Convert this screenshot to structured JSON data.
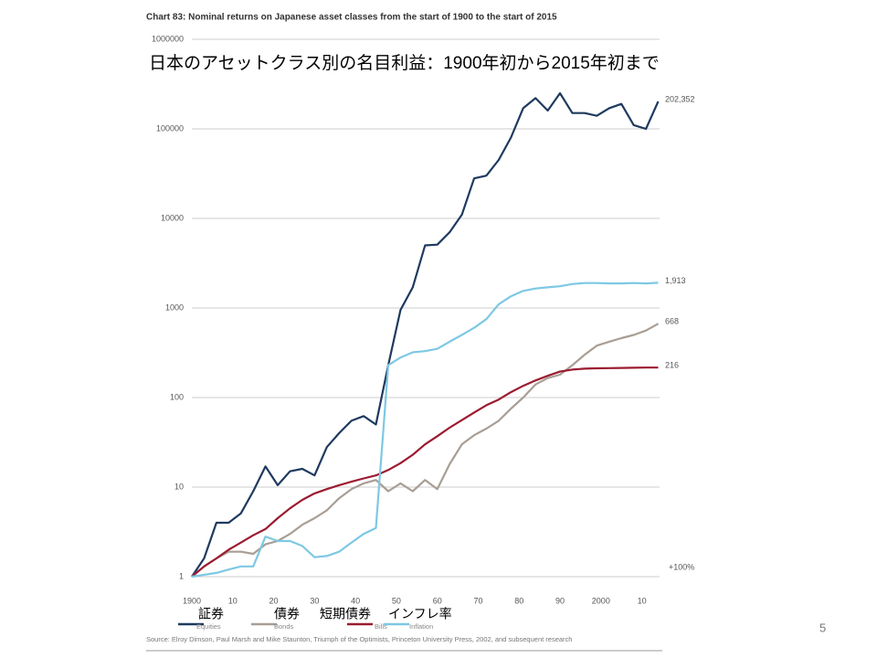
{
  "chart_data": {
    "type": "line",
    "title": "Chart 83: Nominal returns on Japanese asset classes from the start of 1900 to the start of 2015",
    "subtitle": "日本のアセットクラス別の名目利益：1900年初から2015年初まで",
    "x": [
      1900,
      1903,
      1906,
      1909,
      1912,
      1915,
      1918,
      1921,
      1924,
      1927,
      1930,
      1933,
      1936,
      1939,
      1942,
      1945,
      1948,
      1951,
      1954,
      1957,
      1960,
      1963,
      1966,
      1969,
      1972,
      1975,
      1978,
      1981,
      1984,
      1987,
      1990,
      1993,
      1996,
      1999,
      2002,
      2005,
      2008,
      2011,
      2014
    ],
    "series": [
      {
        "name": "Equities",
        "legend_overlay": "証券",
        "color": "#1f3a5f",
        "end_label": "202,352",
        "values": [
          1,
          1.6,
          4,
          4,
          5.1,
          9,
          17,
          10.5,
          15,
          16,
          13.5,
          28,
          40,
          55,
          62,
          50,
          230,
          950,
          1700,
          5000,
          5100,
          7000,
          11000,
          28000,
          30000,
          45000,
          80000,
          170000,
          220000,
          160000,
          250000,
          150000,
          150000,
          140000,
          170000,
          190000,
          110000,
          100000,
          202352
        ]
      },
      {
        "name": "Bonds",
        "legend_overlay": "債券",
        "color": "#a89e94",
        "end_label": "668",
        "values": [
          1,
          1.3,
          1.6,
          1.9,
          1.9,
          1.8,
          2.3,
          2.5,
          3,
          3.8,
          4.5,
          5.5,
          7.5,
          9.5,
          11,
          12,
          9,
          11,
          9,
          12,
          9.5,
          18,
          30,
          38,
          45,
          55,
          75,
          100,
          140,
          165,
          180,
          230,
          300,
          380,
          420,
          460,
          500,
          560,
          668
        ]
      },
      {
        "name": "Bills",
        "legend_overlay": "短期債券",
        "color": "#9b1b30",
        "end_label": "216",
        "values": [
          1,
          1.3,
          1.6,
          2,
          2.4,
          2.9,
          3.4,
          4.5,
          5.8,
          7.2,
          8.5,
          9.5,
          10.5,
          11.5,
          12.5,
          13.5,
          15.5,
          18.5,
          23,
          30,
          37,
          46,
          56,
          68,
          82,
          95,
          115,
          135,
          155,
          175,
          195,
          205,
          210,
          212,
          213,
          214,
          215,
          216,
          216
        ]
      },
      {
        "name": "Inflation",
        "legend_overlay": "インフレ率",
        "color": "#7ec8e3",
        "end_label": "1,913",
        "values": [
          1,
          1.05,
          1.1,
          1.2,
          1.3,
          1.3,
          2.8,
          2.5,
          2.5,
          2.2,
          1.65,
          1.7,
          1.9,
          2.4,
          3,
          3.5,
          230,
          280,
          320,
          330,
          350,
          420,
          500,
          600,
          750,
          1100,
          1350,
          1550,
          1650,
          1700,
          1750,
          1850,
          1900,
          1900,
          1880,
          1880,
          1900,
          1880,
          1913
        ]
      }
    ],
    "xlim": [
      1900,
      2015
    ],
    "xticks": [
      1900,
      {
        "value": 1910,
        "label": "10"
      },
      {
        "value": 1920,
        "label": "20"
      },
      {
        "value": 1930,
        "label": "30"
      },
      {
        "value": 1940,
        "label": "40"
      },
      {
        "value": 1950,
        "label": "50"
      },
      {
        "value": 1960,
        "label": "60"
      },
      {
        "value": 1970,
        "label": "70"
      },
      {
        "value": 1980,
        "label": "80"
      },
      {
        "value": 1990,
        "label": "90"
      },
      2000,
      {
        "value": 2010,
        "label": "10"
      }
    ],
    "ylim": [
      1,
      1000000
    ],
    "yticks": [
      1,
      10,
      100,
      1000,
      10000,
      100000,
      1000000
    ],
    "log_scale": "y",
    "grid": true,
    "annotations": [
      {
        "text": "+100%",
        "value": 1
      }
    ],
    "source": "Source: Elroy Dimson, Paul Marsh and Mike Staunton, Triumph of the Optimists, Princeton University Press, 2002, and subsequent research"
  },
  "page_number": "5"
}
